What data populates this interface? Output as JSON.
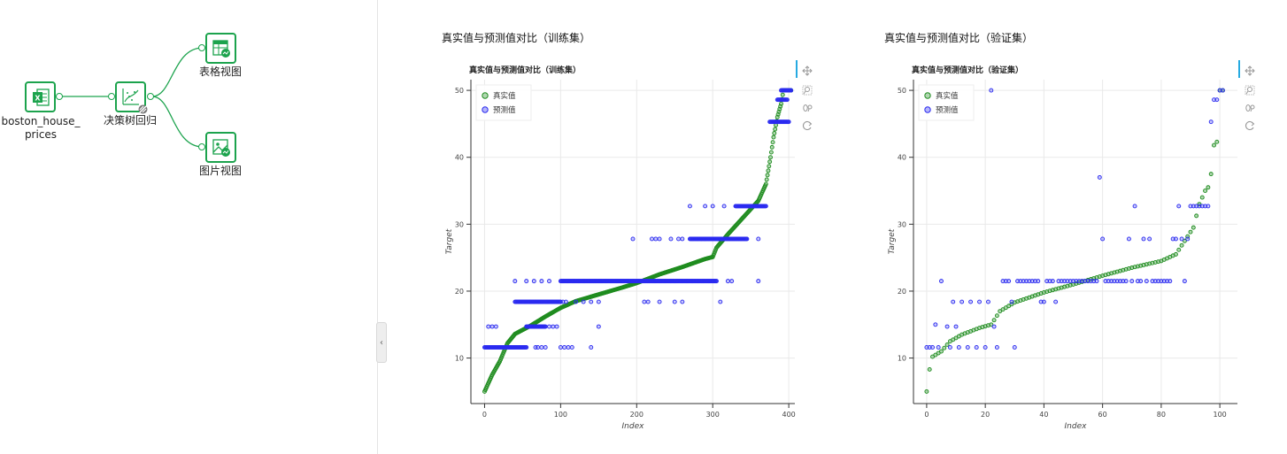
{
  "workflow": {
    "nodes": [
      {
        "id": "source",
        "label": "boston_house_\nprices"
      },
      {
        "id": "model",
        "label": "决策树回归"
      },
      {
        "id": "table",
        "label": "表格视图"
      },
      {
        "id": "image",
        "label": "图片视图"
      }
    ],
    "source_label_line1": "boston_house_",
    "source_label_line2": "prices",
    "model_label": "决策树回归",
    "table_label": "表格视图",
    "image_label": "图片视图",
    "accent_color": "#1ca34d"
  },
  "panels": {
    "train_heading": "真实值与预测值对比（训练集）",
    "val_heading": "真实值与预测值对比（验证集）"
  },
  "toolbar": {
    "pan_icon": "pan-icon",
    "zoom_icon": "box-zoom-icon",
    "wheel_icon": "wheel-zoom-icon",
    "reset_icon": "reset-icon"
  },
  "collapse_glyph": "‹",
  "chart_data": [
    {
      "type": "scatter",
      "title": "真实值与预测值对比（训练集）",
      "xlabel": "Index",
      "ylabel": "Target",
      "xlim": [
        -18,
        408
      ],
      "ylim": [
        3.2,
        51.6
      ],
      "xticks": [
        0,
        100,
        200,
        300,
        400
      ],
      "yticks": [
        10,
        20,
        30,
        40,
        50
      ],
      "grid": true,
      "legend_position": "top-left",
      "series": [
        {
          "name": "真实值",
          "color": "#1f8c1f",
          "values_desc": "sorted true targets 5→50 over 404 points",
          "anchors": [
            [
              0,
              5
            ],
            [
              10,
              7.5
            ],
            [
              20,
              9.5
            ],
            [
              30,
              12.2
            ],
            [
              40,
              13.6
            ],
            [
              60,
              14.8
            ],
            [
              80,
              16.2
            ],
            [
              100,
              17.5
            ],
            [
              120,
              18.5
            ],
            [
              150,
              19.5
            ],
            [
              180,
              20.5
            ],
            [
              200,
              21.2
            ],
            [
              230,
              22.5
            ],
            [
              260,
              23.6
            ],
            [
              290,
              24.8
            ],
            [
              300,
              25.1
            ],
            [
              305,
              26.5
            ],
            [
              320,
              28.5
            ],
            [
              340,
              31
            ],
            [
              360,
              33.5
            ],
            [
              370,
              36
            ],
            [
              376,
              40
            ],
            [
              380,
              43
            ],
            [
              385,
              46
            ],
            [
              390,
              48
            ],
            [
              393,
              50
            ],
            [
              403,
              50
            ]
          ]
        },
        {
          "name": "预测值",
          "color": "#2a2af0",
          "values_desc": "decision tree leaf predictions",
          "levels": [
            {
              "y": 11.6,
              "x": [
                0,
                55
              ],
              "extra": [
                67,
                70,
                75,
                80,
                100,
                105,
                110,
                115,
                140
              ]
            },
            {
              "y": 14.7,
              "x": [
                55,
                80
              ],
              "extra": [
                5,
                10,
                15,
                60,
                85,
                90,
                95,
                150
              ]
            },
            {
              "y": 18.4,
              "x": [
                40,
                100
              ],
              "extra": [
                103,
                107,
                120,
                130,
                140,
                150,
                210,
                215,
                230,
                250,
                260,
                310
              ]
            },
            {
              "y": 21.5,
              "x": [
                100,
                305
              ],
              "extra": [
                40,
                55,
                65,
                75,
                85,
                320,
                325,
                360
              ]
            },
            {
              "y": 27.8,
              "x": [
                270,
                345
              ],
              "extra": [
                195,
                220,
                225,
                230,
                245,
                255,
                260,
                285,
                290,
                360
              ]
            },
            {
              "y": 32.7,
              "x": [
                330,
                370
              ],
              "extra": [
                270,
                290,
                300,
                315
              ]
            },
            {
              "y": 45.3,
              "x": [
                375,
                400
              ],
              "extra": []
            },
            {
              "y": 48.6,
              "x": [
                385,
                398
              ],
              "extra": []
            },
            {
              "y": 50.0,
              "x": [
                390,
                403
              ],
              "extra": []
            }
          ]
        }
      ]
    },
    {
      "type": "scatter",
      "title": "真实值与预测值对比（验证集）",
      "xlabel": "Index",
      "ylabel": "Target",
      "xlim": [
        -4.5,
        106
      ],
      "ylim": [
        3.2,
        51.6
      ],
      "xticks": [
        0,
        20,
        40,
        60,
        80,
        100
      ],
      "yticks": [
        10,
        20,
        30,
        40,
        50
      ],
      "grid": true,
      "legend_position": "top-left",
      "series": [
        {
          "name": "真实值",
          "color": "#1f8c1f",
          "anchors": [
            [
              0,
              5
            ],
            [
              1,
              8.3
            ],
            [
              2,
              10.2
            ],
            [
              5,
              11
            ],
            [
              8,
              12.5
            ],
            [
              12,
              13.5
            ],
            [
              18,
              14.5
            ],
            [
              22,
              15
            ],
            [
              25,
              17
            ],
            [
              30,
              18.3
            ],
            [
              40,
              19.8
            ],
            [
              50,
              21
            ],
            [
              60,
              22.3
            ],
            [
              70,
              23.5
            ],
            [
              80,
              24.5
            ],
            [
              85,
              25.5
            ],
            [
              88,
              27.5
            ],
            [
              91,
              29.5
            ],
            [
              93,
              33
            ],
            [
              95,
              35
            ],
            [
              96,
              35.5
            ],
            [
              97,
              37.5
            ],
            [
              98,
              41.8
            ],
            [
              99,
              42.3
            ],
            [
              100,
              50
            ],
            [
              101,
              50
            ]
          ]
        },
        {
          "name": "预测值",
          "color": "#2a2af0",
          "points": [
            [
              0,
              11.6
            ],
            [
              1,
              11.6
            ],
            [
              2,
              11.6
            ],
            [
              3,
              15
            ],
            [
              4,
              11.6
            ],
            [
              5,
              21.5
            ],
            [
              7,
              14.7
            ],
            [
              8,
              11.6
            ],
            [
              9,
              18.4
            ],
            [
              10,
              14.7
            ],
            [
              11,
              11.6
            ],
            [
              12,
              18.4
            ],
            [
              14,
              11.6
            ],
            [
              15,
              18.4
            ],
            [
              17,
              11.6
            ],
            [
              18,
              18.4
            ],
            [
              20,
              11.6
            ],
            [
              21,
              18.4
            ],
            [
              22,
              50
            ],
            [
              23,
              14.7
            ],
            [
              24,
              11.6
            ],
            [
              26,
              21.5
            ],
            [
              27,
              21.5
            ],
            [
              28,
              21.5
            ],
            [
              29,
              18.4
            ],
            [
              30,
              11.6
            ],
            [
              31,
              21.5
            ],
            [
              32,
              21.5
            ],
            [
              33,
              21.5
            ],
            [
              34,
              21.5
            ],
            [
              35,
              21.5
            ],
            [
              36,
              21.5
            ],
            [
              37,
              21.5
            ],
            [
              38,
              21.5
            ],
            [
              39,
              18.4
            ],
            [
              40,
              18.4
            ],
            [
              41,
              21.5
            ],
            [
              42,
              21.5
            ],
            [
              43,
              21.5
            ],
            [
              44,
              18.4
            ],
            [
              45,
              21.5
            ],
            [
              46,
              21.5
            ],
            [
              47,
              21.5
            ],
            [
              48,
              21.5
            ],
            [
              49,
              21.5
            ],
            [
              50,
              21.5
            ],
            [
              51,
              21.5
            ],
            [
              52,
              21.5
            ],
            [
              53,
              21.5
            ],
            [
              54,
              21.5
            ],
            [
              55,
              21.5
            ],
            [
              56,
              21.5
            ],
            [
              57,
              21.5
            ],
            [
              58,
              21.5
            ],
            [
              59,
              37
            ],
            [
              60,
              27.8
            ],
            [
              61,
              21.5
            ],
            [
              62,
              21.5
            ],
            [
              63,
              21.5
            ],
            [
              64,
              21.5
            ],
            [
              65,
              21.5
            ],
            [
              66,
              21.5
            ],
            [
              67,
              21.5
            ],
            [
              68,
              21.5
            ],
            [
              69,
              27.8
            ],
            [
              70,
              21.5
            ],
            [
              71,
              32.7
            ],
            [
              72,
              21.5
            ],
            [
              73,
              21.5
            ],
            [
              74,
              27.8
            ],
            [
              75,
              21.5
            ],
            [
              76,
              27.8
            ],
            [
              77,
              21.5
            ],
            [
              78,
              21.5
            ],
            [
              79,
              21.5
            ],
            [
              80,
              21.5
            ],
            [
              81,
              21.5
            ],
            [
              82,
              21.5
            ],
            [
              83,
              21.5
            ],
            [
              84,
              27.8
            ],
            [
              85,
              27.8
            ],
            [
              86,
              32.7
            ],
            [
              87,
              27.8
            ],
            [
              88,
              21.5
            ],
            [
              89,
              27.8
            ],
            [
              90,
              32.7
            ],
            [
              91,
              32.7
            ],
            [
              92,
              32.7
            ],
            [
              93,
              32.7
            ],
            [
              94,
              32.7
            ],
            [
              95,
              32.7
            ],
            [
              96,
              32.7
            ],
            [
              97,
              45.3
            ],
            [
              98,
              48.6
            ],
            [
              99,
              48.6
            ],
            [
              100,
              50
            ],
            [
              101,
              50
            ]
          ]
        }
      ]
    }
  ]
}
